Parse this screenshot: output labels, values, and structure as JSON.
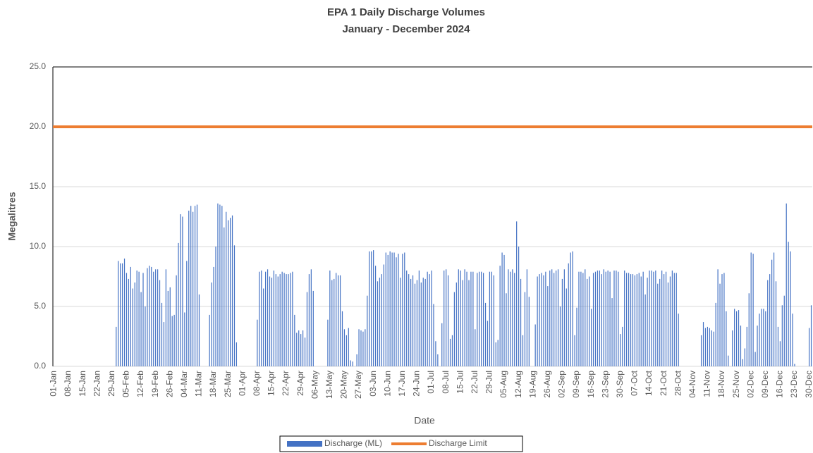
{
  "chart_data": {
    "type": "bar",
    "title": "EPA 1 Daily Discharge Volumes",
    "subtitle": "January - December 2024",
    "x_label": "Date",
    "y_label": "Megalitres",
    "ylim": [
      0,
      25
    ],
    "yticks": [
      {
        "value": 0,
        "label": "0.0"
      },
      {
        "value": 5,
        "label": "5.0"
      },
      {
        "value": 10,
        "label": "10.0"
      },
      {
        "value": 15,
        "label": "15.0"
      },
      {
        "value": 20,
        "label": "20.0"
      },
      {
        "value": 25,
        "label": "25.0"
      }
    ],
    "grid": true,
    "legend": "bottom",
    "categories": [
      "01-Jan",
      null,
      null,
      null,
      null,
      null,
      null,
      "08-Jan",
      null,
      null,
      null,
      null,
      null,
      null,
      "15-Jan",
      null,
      null,
      null,
      null,
      null,
      null,
      "22-Jan",
      null,
      null,
      null,
      null,
      null,
      null,
      "29-Jan",
      null,
      null,
      null,
      null,
      null,
      null,
      "05-Feb",
      null,
      null,
      null,
      null,
      null,
      null,
      "12-Feb",
      null,
      null,
      null,
      null,
      null,
      null,
      "19-Feb",
      null,
      null,
      null,
      null,
      null,
      null,
      "26-Feb",
      null,
      null,
      null,
      null,
      null,
      null,
      "04-Mar",
      null,
      null,
      null,
      null,
      null,
      null,
      "11-Mar",
      null,
      null,
      null,
      null,
      null,
      null,
      "18-Mar",
      null,
      null,
      null,
      null,
      null,
      null,
      "25-Mar",
      null,
      null,
      null,
      null,
      null,
      null,
      "01-Apr",
      null,
      null,
      null,
      null,
      null,
      null,
      "08-Apr",
      null,
      null,
      null,
      null,
      null,
      null,
      "15-Apr",
      null,
      null,
      null,
      null,
      null,
      null,
      "22-Apr",
      null,
      null,
      null,
      null,
      null,
      null,
      "29-Apr",
      null,
      null,
      null,
      null,
      null,
      null,
      "06-May",
      null,
      null,
      null,
      null,
      null,
      null,
      "13-May",
      null,
      null,
      null,
      null,
      null,
      null,
      "20-May",
      null,
      null,
      null,
      null,
      null,
      null,
      "27-May",
      null,
      null,
      null,
      null,
      null,
      null,
      "03-Jun",
      null,
      null,
      null,
      null,
      null,
      null,
      "10-Jun",
      null,
      null,
      null,
      null,
      null,
      null,
      "17-Jun",
      null,
      null,
      null,
      null,
      null,
      null,
      "24-Jun",
      null,
      null,
      null,
      null,
      null,
      null,
      "01-Jul",
      null,
      null,
      null,
      null,
      null,
      null,
      "08-Jul",
      null,
      null,
      null,
      null,
      null,
      null,
      "15-Jul",
      null,
      null,
      null,
      null,
      null,
      null,
      "22-Jul",
      null,
      null,
      null,
      null,
      null,
      null,
      "29-Jul",
      null,
      null,
      null,
      null,
      null,
      null,
      "05-Aug",
      null,
      null,
      null,
      null,
      null,
      null,
      "12-Aug",
      null,
      null,
      null,
      null,
      null,
      null,
      "19-Aug",
      null,
      null,
      null,
      null,
      null,
      null,
      "26-Aug",
      null,
      null,
      null,
      null,
      null,
      null,
      "02-Sep",
      null,
      null,
      null,
      null,
      null,
      null,
      "09-Sep",
      null,
      null,
      null,
      null,
      null,
      null,
      "16-Sep",
      null,
      null,
      null,
      null,
      null,
      null,
      "23-Sep",
      null,
      null,
      null,
      null,
      null,
      null,
      "30-Sep",
      null,
      null,
      null,
      null,
      null,
      null,
      "07-Oct",
      null,
      null,
      null,
      null,
      null,
      null,
      "14-Oct",
      null,
      null,
      null,
      null,
      null,
      null,
      "21-Oct",
      null,
      null,
      null,
      null,
      null,
      null,
      "28-Oct",
      null,
      null,
      null,
      null,
      null,
      null,
      "04-Nov",
      null,
      null,
      null,
      null,
      null,
      null,
      "11-Nov",
      null,
      null,
      null,
      null,
      null,
      null,
      "18-Nov",
      null,
      null,
      null,
      null,
      null,
      null,
      "25-Nov",
      null,
      null,
      null,
      null,
      null,
      null,
      "02-Dec",
      null,
      null,
      null,
      null,
      null,
      null,
      "09-Dec",
      null,
      null,
      null,
      null,
      null,
      null,
      "16-Dec",
      null,
      null,
      null,
      null,
      null,
      null,
      "23-Dec",
      null,
      null,
      null,
      null,
      null,
      null,
      "30-Dec",
      null
    ],
    "series": [
      {
        "name": "Discharge (ML)",
        "color": "#4472c4",
        "values": [
          0,
          0,
          0,
          0,
          0,
          0,
          0,
          0,
          0,
          0,
          0,
          0,
          0,
          0,
          0,
          0,
          0,
          0,
          0,
          0,
          0,
          0,
          0,
          0,
          0,
          0,
          0,
          0,
          0,
          0,
          3.3,
          8.8,
          8.6,
          8.6,
          9.0,
          7.8,
          7.3,
          8.3,
          6.5,
          7.0,
          8.0,
          7.9,
          6.2,
          7.8,
          5.0,
          8.2,
          8.4,
          8.3,
          7.9,
          8.1,
          8.1,
          7.2,
          5.3,
          3.7,
          8.1,
          6.3,
          6.6,
          4.2,
          4.3,
          7.6,
          10.3,
          12.7,
          12.5,
          4.5,
          8.8,
          13.0,
          13.4,
          12.9,
          13.4,
          13.5,
          6.0,
          0,
          0,
          0,
          0,
          4.3,
          7.0,
          8.3,
          10.0,
          13.6,
          13.5,
          13.4,
          11.6,
          12.9,
          12.2,
          12.4,
          12.6,
          10.1,
          2.0,
          0,
          0,
          0,
          0,
          0,
          0,
          0,
          0,
          0,
          3.9,
          7.9,
          8.0,
          6.5,
          7.9,
          8.1,
          7.5,
          7.4,
          8.0,
          7.7,
          7.5,
          7.7,
          7.9,
          7.8,
          7.7,
          7.7,
          7.8,
          7.9,
          4.3,
          2.8,
          3.0,
          2.7,
          3.0,
          2.4,
          6.2,
          7.7,
          8.1,
          6.3,
          0,
          0,
          0,
          0,
          0,
          0,
          3.9,
          8.0,
          7.2,
          7.3,
          7.8,
          7.6,
          7.6,
          4.6,
          3.1,
          2.6,
          3.2,
          0.5,
          0.4,
          0,
          1.0,
          3.1,
          3.0,
          2.9,
          3.1,
          5.9,
          9.6,
          9.6,
          9.7,
          8.4,
          7.1,
          7.4,
          7.7,
          8.5,
          9.5,
          9.3,
          9.6,
          9.5,
          9.5,
          9.1,
          9.4,
          7.4,
          9.4,
          9.5,
          8.0,
          7.7,
          7.3,
          7.6,
          6.9,
          7.2,
          8.0,
          7.0,
          7.4,
          7.3,
          7.9,
          7.7,
          8.0,
          5.2,
          2.1,
          1.0,
          0,
          3.6,
          8.0,
          8.1,
          7.6,
          2.3,
          2.6,
          6.2,
          7.0,
          8.1,
          8.0,
          7.2,
          8.1,
          7.9,
          7.2,
          7.9,
          7.9,
          3.1,
          7.8,
          7.9,
          7.9,
          7.8,
          5.3,
          3.8,
          7.9,
          7.9,
          7.6,
          2.0,
          2.2,
          8.4,
          9.5,
          9.3,
          6.1,
          8.1,
          7.9,
          8.1,
          7.8,
          12.1,
          10.0,
          7.3,
          2.6,
          6.2,
          8.1,
          5.8,
          0,
          0,
          3.5,
          7.5,
          7.7,
          7.8,
          7.6,
          7.9,
          6.7,
          8.0,
          8.1,
          7.8,
          8.0,
          8.1,
          5.0,
          7.3,
          8.1,
          6.5,
          8.6,
          9.5,
          9.6,
          2.6,
          4.9,
          7.9,
          7.9,
          7.8,
          8.1,
          7.3,
          7.5,
          4.8,
          7.8,
          7.9,
          8.0,
          8.0,
          7.7,
          8.1,
          7.9,
          8.0,
          7.9,
          5.7,
          8.0,
          8.0,
          7.9,
          2.7,
          3.3,
          8.0,
          7.8,
          7.8,
          7.7,
          7.7,
          7.6,
          7.7,
          7.8,
          7.5,
          7.9,
          6.0,
          7.4,
          8.0,
          8.0,
          7.9,
          8.0,
          6.9,
          7.3,
          8.0,
          7.7,
          7.9,
          7.0,
          7.5,
          8.0,
          7.8,
          7.8,
          4.4,
          0,
          0,
          0,
          0,
          0,
          0,
          0,
          0,
          0,
          0,
          2.6,
          3.7,
          3.2,
          3.3,
          3.2,
          3.0,
          2.9,
          5.3,
          8.1,
          6.9,
          7.7,
          7.8,
          4.6,
          0.9,
          0,
          3.0,
          4.8,
          4.6,
          4.7,
          3.4,
          0.6,
          1.5,
          3.3,
          6.1,
          9.5,
          9.4,
          1.2,
          3.4,
          4.4,
          4.8,
          4.8,
          4.6,
          7.2,
          7.7,
          8.9,
          9.5,
          7.1,
          3.3,
          2.1,
          5.1,
          5.9,
          13.6,
          10.4,
          9.6,
          4.4,
          0.2,
          0,
          0,
          0,
          0,
          0,
          0,
          3.2,
          5.1
        ]
      }
    ],
    "limit": {
      "name": "Discharge Limit",
      "value": 20,
      "color": "#ed7d31"
    }
  }
}
